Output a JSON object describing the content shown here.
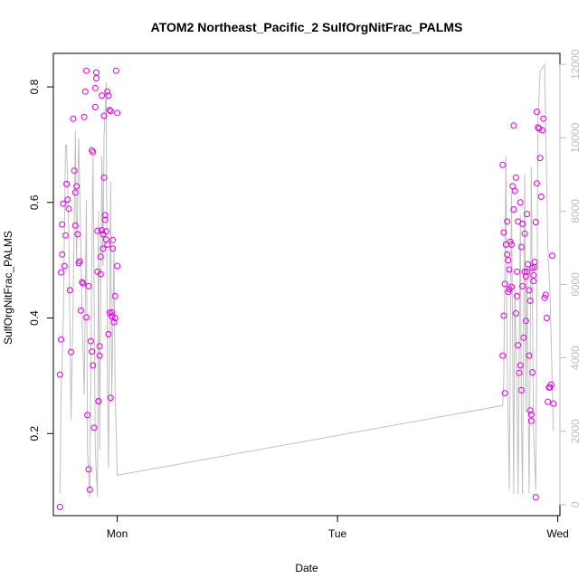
{
  "chart_data": {
    "type": "scatter",
    "title": "ATOM2 Northeast_Pacific_2 SulfOrgNitFrac_PALMS",
    "xlabel": "Date",
    "ylabel": "SulfOrgNitFrac_PALMS",
    "x_axis": {
      "range": [
        -0.29,
        2.01
      ],
      "ticks": [
        {
          "value": 0,
          "label": "Mon"
        },
        {
          "value": 1,
          "label": "Tue"
        },
        {
          "value": 2,
          "label": "Wed"
        }
      ]
    },
    "y_axis": {
      "range": [
        0.058,
        0.858
      ],
      "ticks": [
        0.2,
        0.4,
        0.6,
        0.8
      ]
    },
    "y2_axis": {
      "color": "#bdbdbd",
      "range": [
        -300,
        12300
      ],
      "ticks": [
        0,
        2000,
        4000,
        6000,
        8000,
        10000,
        12000
      ]
    },
    "grid": false,
    "series": [
      {
        "role": "points",
        "color": "#e000e0",
        "marker": "open-circle",
        "x": [
          -0.26,
          -0.26,
          -0.255,
          -0.255,
          -0.25,
          -0.25,
          -0.245,
          -0.24,
          -0.235,
          -0.23,
          -0.225,
          -0.22,
          -0.215,
          -0.21,
          -0.2,
          -0.195,
          -0.19,
          -0.19,
          -0.185,
          -0.18,
          -0.175,
          -0.17,
          -0.165,
          -0.16,
          -0.155,
          -0.15,
          -0.145,
          -0.14,
          -0.14,
          -0.135,
          -0.13,
          -0.13,
          -0.125,
          -0.12,
          -0.115,
          -0.115,
          -0.11,
          -0.11,
          -0.105,
          -0.1,
          -0.1,
          -0.095,
          -0.095,
          -0.09,
          -0.09,
          -0.085,
          -0.085,
          -0.08,
          -0.08,
          -0.075,
          -0.075,
          -0.07,
          -0.07,
          -0.065,
          -0.065,
          -0.06,
          -0.06,
          -0.055,
          -0.055,
          -0.05,
          -0.05,
          -0.045,
          -0.045,
          -0.04,
          -0.04,
          -0.035,
          -0.035,
          -0.03,
          -0.03,
          -0.025,
          -0.025,
          -0.02,
          -0.02,
          -0.015,
          -0.01,
          -0.01,
          -0.005,
          0.0,
          0.0,
          1.75,
          1.75,
          1.755,
          1.755,
          1.76,
          1.76,
          1.765,
          1.77,
          1.77,
          1.775,
          1.775,
          1.78,
          1.78,
          1.785,
          1.79,
          1.79,
          1.795,
          1.8,
          1.8,
          1.805,
          1.81,
          1.81,
          1.815,
          1.815,
          1.82,
          1.82,
          1.825,
          1.83,
          1.83,
          1.835,
          1.835,
          1.84,
          1.84,
          1.845,
          1.85,
          1.85,
          1.855,
          1.855,
          1.86,
          1.86,
          1.865,
          1.87,
          1.87,
          1.875,
          1.875,
          1.88,
          1.88,
          1.885,
          1.885,
          1.89,
          1.89,
          1.895,
          1.895,
          1.9,
          1.9,
          1.905,
          1.905,
          1.91,
          1.915,
          1.92,
          1.925,
          1.93,
          1.935,
          1.94,
          1.945,
          1.95,
          1.955,
          1.96,
          1.965,
          1.97,
          1.975,
          1.98
        ],
        "y": [
          0.073,
          0.302,
          0.363,
          0.479,
          0.51,
          0.562,
          0.598,
          0.49,
          0.543,
          0.632,
          0.605,
          0.589,
          0.448,
          0.341,
          0.745,
          0.655,
          0.56,
          0.617,
          0.628,
          0.545,
          0.495,
          0.498,
          0.413,
          0.462,
          0.46,
          0.748,
          0.792,
          0.828,
          0.401,
          0.232,
          0.455,
          0.138,
          0.103,
          0.36,
          0.342,
          0.69,
          0.687,
          0.318,
          0.21,
          0.765,
          0.798,
          0.825,
          0.815,
          0.551,
          0.48,
          0.256,
          0.256,
          0.335,
          0.351,
          0.476,
          0.506,
          0.785,
          0.552,
          0.52,
          0.545,
          0.75,
          0.643,
          0.57,
          0.578,
          0.536,
          0.55,
          0.527,
          0.792,
          0.785,
          0.372,
          0.409,
          0.76,
          0.758,
          0.262,
          0.403,
          0.41,
          0.52,
          0.535,
          0.393,
          0.4,
          0.438,
          0.828,
          0.755,
          0.49,
          0.335,
          0.665,
          0.548,
          0.404,
          0.459,
          0.27,
          0.527,
          0.567,
          0.51,
          0.445,
          0.5,
          0.45,
          0.484,
          0.532,
          0.527,
          0.454,
          0.628,
          0.588,
          0.733,
          0.62,
          0.408,
          0.643,
          0.438,
          0.48,
          0.353,
          0.567,
          0.305,
          0.6,
          0.318,
          0.275,
          0.523,
          0.563,
          0.455,
          0.366,
          0.48,
          0.546,
          0.395,
          0.472,
          0.58,
          0.48,
          0.493,
          0.448,
          0.335,
          0.43,
          0.24,
          0.233,
          0.222,
          0.306,
          0.487,
          0.464,
          0.474,
          0.497,
          0.488,
          0.09,
          0.566,
          0.633,
          0.757,
          0.73,
          0.728,
          0.677,
          0.61,
          0.725,
          0.745,
          0.435,
          0.44,
          0.4,
          0.255,
          0.28,
          0.28,
          0.285,
          0.508,
          0.252
        ],
        "x_extra_min": -0.265
      },
      {
        "role": "line",
        "axis": "y2",
        "color": "#c0c0c0",
        "x": [
          -0.26,
          -0.255,
          -0.245,
          -0.235,
          -0.23,
          -0.22,
          -0.21,
          -0.2,
          -0.19,
          -0.185,
          -0.175,
          -0.165,
          -0.16,
          -0.15,
          -0.14,
          -0.135,
          -0.125,
          -0.115,
          -0.11,
          -0.105,
          -0.1,
          -0.09,
          -0.085,
          -0.08,
          -0.07,
          -0.065,
          -0.06,
          -0.05,
          -0.045,
          -0.04,
          -0.03,
          -0.025,
          -0.015,
          -0.01,
          0.0,
          1.75,
          1.755,
          1.765,
          1.77,
          1.78,
          1.79,
          1.795,
          1.8,
          1.805,
          1.815,
          1.82,
          1.83,
          1.835,
          1.84,
          1.85,
          1.855,
          1.86,
          1.87,
          1.875,
          1.88,
          1.89,
          1.9,
          1.905,
          1.91,
          1.92,
          1.93,
          1.94,
          1.955,
          1.965,
          1.97,
          1.98
        ],
        "y": [
          300,
          3000,
          5000,
          9800,
          9800,
          7500,
          2300,
          5500,
          10200,
          6500,
          10000,
          7000,
          5200,
          3000,
          8300,
          1500,
          200,
          6900,
          9500,
          5800,
          1500,
          200,
          8000,
          1500,
          9500,
          6500,
          10000,
          11500,
          3500,
          1000,
          8800,
          2800,
          7000,
          3200,
          800,
          2700,
          3400,
          9500,
          4000,
          400,
          8500,
          4500,
          300,
          6000,
          3000,
          300,
          7900,
          2500,
          300,
          9000,
          2500,
          6500,
          300,
          4000,
          9200,
          2000,
          400,
          4500,
          10500,
          11800,
          11900,
          12000,
          7000,
          5800,
          4500,
          2000
        ]
      }
    ]
  }
}
